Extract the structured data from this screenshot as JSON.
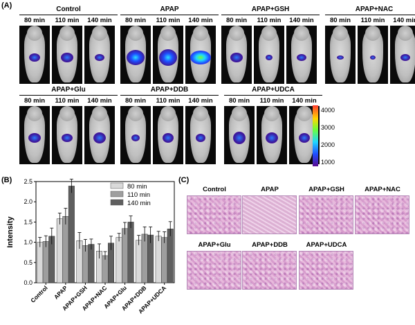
{
  "panel_labels": {
    "a": "(A)",
    "b": "(B)",
    "c": "(C)"
  },
  "imaging": {
    "groups": [
      {
        "name": "Control",
        "times": [
          "80 min",
          "110 min",
          "140 min"
        ]
      },
      {
        "name": "APAP",
        "times": [
          "80 min",
          "110 min",
          "140 min"
        ]
      },
      {
        "name": "APAP+GSH",
        "times": [
          "80 min",
          "110 min",
          "140 min"
        ]
      },
      {
        "name": "APAP+NAC",
        "times": [
          "80 min",
          "110 min",
          "140 min"
        ]
      },
      {
        "name": "APAP+Glu",
        "times": [
          "80 min",
          "110 min",
          "140 min"
        ]
      },
      {
        "name": "APAP+DDB",
        "times": [
          "80 min",
          "110 min",
          "140 min"
        ]
      },
      {
        "name": "APAP+UDCA",
        "times": [
          "80 min",
          "110 min",
          "140 min"
        ]
      }
    ],
    "colorbar_ticks": [
      "4000",
      "3000",
      "2000",
      "1000"
    ]
  },
  "chart_data": {
    "type": "bar",
    "ylabel": "Intensity",
    "ylim": [
      0,
      2.5
    ],
    "yticks": [
      "0.0",
      "0.5",
      "1.0",
      "1.5",
      "2.0",
      "2.5"
    ],
    "categories": [
      "Control",
      "APAP",
      "APAP+GSH",
      "APAP+NAC",
      "APAP+Glu",
      "APAP+DDB",
      "APAP+UDCA"
    ],
    "series": [
      {
        "name": "80 min",
        "color": "#d9d9d9",
        "values": [
          1.0,
          1.58,
          1.04,
          0.78,
          1.12,
          1.05,
          1.15
        ],
        "errors": [
          0.12,
          0.14,
          0.2,
          0.18,
          0.1,
          0.12,
          0.12
        ]
      },
      {
        "name": "110 min",
        "color": "#9e9e9e",
        "values": [
          1.02,
          1.64,
          0.92,
          0.67,
          1.34,
          1.2,
          1.12
        ],
        "errors": [
          0.14,
          0.2,
          0.15,
          0.1,
          0.15,
          0.18,
          0.14
        ]
      },
      {
        "name": "140 min",
        "color": "#5f5f5f",
        "values": [
          1.15,
          2.39,
          0.95,
          0.98,
          1.5,
          1.18,
          1.33
        ],
        "errors": [
          0.2,
          0.17,
          0.13,
          0.17,
          0.15,
          0.2,
          0.18
        ]
      }
    ],
    "legend": "top-right"
  },
  "histology": {
    "titles": [
      "Control",
      "APAP",
      "APAP+GSH",
      "APAP+NAC",
      "APAP+Glu",
      "APAP+DDB",
      "APAP+UDCA"
    ]
  }
}
